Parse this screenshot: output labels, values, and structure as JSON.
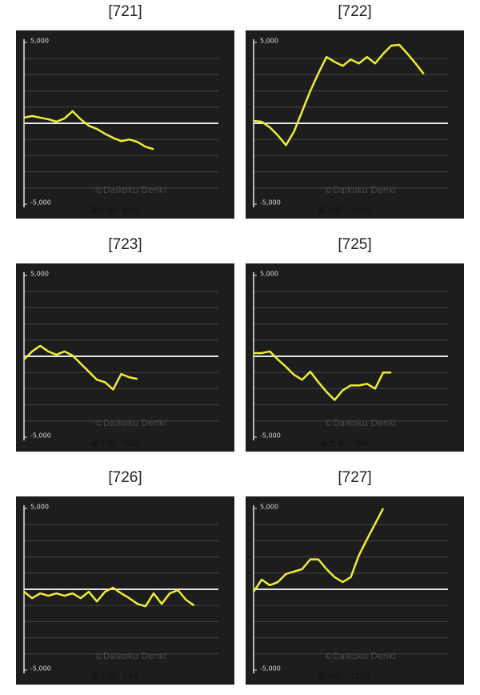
{
  "chart_data": [
    {
      "type": "line",
      "title": "[721]",
      "color": "#ecec3c",
      "xlim": [
        0,
        24
      ],
      "ylim": [
        -5000,
        5000
      ],
      "yticks": [
        {
          "value": 5000,
          "label": "5,000"
        },
        {
          "value": -5000,
          "label": "-5,000"
        }
      ],
      "gridlines": [
        -4000,
        -3000,
        -2000,
        -1000,
        0,
        1000,
        2000,
        3000,
        4000
      ],
      "values": [
        350,
        450,
        350,
        250,
        100,
        300,
        750,
        250,
        -150,
        -350,
        -650,
        -900,
        -1100,
        -1000,
        -1150,
        -1450,
        -1600
      ],
      "watermark": "©Daikoku Denki",
      "max_label": "最大値：845"
    },
    {
      "type": "line",
      "title": "[722]",
      "color": "#ecec3c",
      "xlim": [
        0,
        24
      ],
      "ylim": [
        -5000,
        5000
      ],
      "yticks": [
        {
          "value": 5000,
          "label": "5,000"
        },
        {
          "value": -5000,
          "label": "-5,000"
        }
      ],
      "gridlines": [
        -4000,
        -3000,
        -2000,
        -1000,
        0,
        1000,
        2000,
        3000,
        4000
      ],
      "values": [
        150,
        100,
        -250,
        -750,
        -1350,
        -500,
        750,
        2000,
        3100,
        4100,
        3800,
        3550,
        3950,
        3700,
        4100,
        3700,
        4300,
        4800,
        4850,
        4300,
        3700,
        3050
      ],
      "watermark": "©Daikoku Denki",
      "max_label": "最大値：4896"
    },
    {
      "type": "line",
      "title": "[723]",
      "color": "#ecec3c",
      "xlim": [
        0,
        24
      ],
      "ylim": [
        -5000,
        5000
      ],
      "yticks": [
        {
          "value": 5000,
          "label": "5,000"
        },
        {
          "value": -5000,
          "label": "-5,000"
        }
      ],
      "gridlines": [
        -4000,
        -3000,
        -2000,
        -1000,
        0,
        1000,
        2000,
        3000,
        4000
      ],
      "values": [
        -200,
        300,
        650,
        300,
        100,
        300,
        50,
        -450,
        -950,
        -1450,
        -1600,
        -2050,
        -1100,
        -1300,
        -1400
      ],
      "watermark": "©Daikoku Denki",
      "max_label": "最大値：702"
    },
    {
      "type": "line",
      "title": "[725]",
      "color": "#ecec3c",
      "xlim": [
        0,
        24
      ],
      "ylim": [
        -5000,
        5000
      ],
      "yticks": [
        {
          "value": 5000,
          "label": "5,000"
        },
        {
          "value": -5000,
          "label": "-5,000"
        }
      ],
      "gridlines": [
        -4000,
        -3000,
        -2000,
        -1000,
        0,
        1000,
        2000,
        3000,
        4000
      ],
      "values": [
        200,
        200,
        300,
        -200,
        -650,
        -1150,
        -1450,
        -950,
        -1600,
        -2200,
        -2700,
        -2100,
        -1800,
        -1800,
        -1700,
        -2000,
        -1000,
        -1000
      ],
      "watermark": "©Daikoku Denki",
      "max_label": "最大値：389"
    },
    {
      "type": "line",
      "title": "[726]",
      "color": "#ecec3c",
      "xlim": [
        0,
        24
      ],
      "ylim": [
        -5000,
        5000
      ],
      "yticks": [
        {
          "value": 5000,
          "label": "5,000"
        },
        {
          "value": -5000,
          "label": "-5,000"
        }
      ],
      "gridlines": [
        -4000,
        -3000,
        -2000,
        -1000,
        0,
        1000,
        2000,
        3000,
        4000
      ],
      "values": [
        -150,
        -550,
        -250,
        -400,
        -250,
        -400,
        -250,
        -550,
        -150,
        -750,
        -150,
        100,
        -250,
        -550,
        -900,
        -1050,
        -250,
        -900,
        -250,
        -50,
        -650,
        -1000
      ],
      "watermark": "©Daikoku Denki",
      "max_label": "最大値：243"
    },
    {
      "type": "line",
      "title": "[727]",
      "color": "#ecec3c",
      "xlim": [
        0,
        24
      ],
      "ylim": [
        -5000,
        5000
      ],
      "yticks": [
        {
          "value": 5000,
          "label": "5,000"
        },
        {
          "value": -5000,
          "label": "-5,000"
        }
      ],
      "gridlines": [
        -4000,
        -3000,
        -2000,
        -1000,
        0,
        1000,
        2000,
        3000,
        4000
      ],
      "values": [
        -150,
        600,
        250,
        450,
        950,
        1100,
        1250,
        1850,
        1850,
        1250,
        750,
        450,
        750,
        2100,
        3100,
        4050,
        5000
      ],
      "watermark": "©Daikoku Denki",
      "max_label": "最大値：7226"
    }
  ]
}
